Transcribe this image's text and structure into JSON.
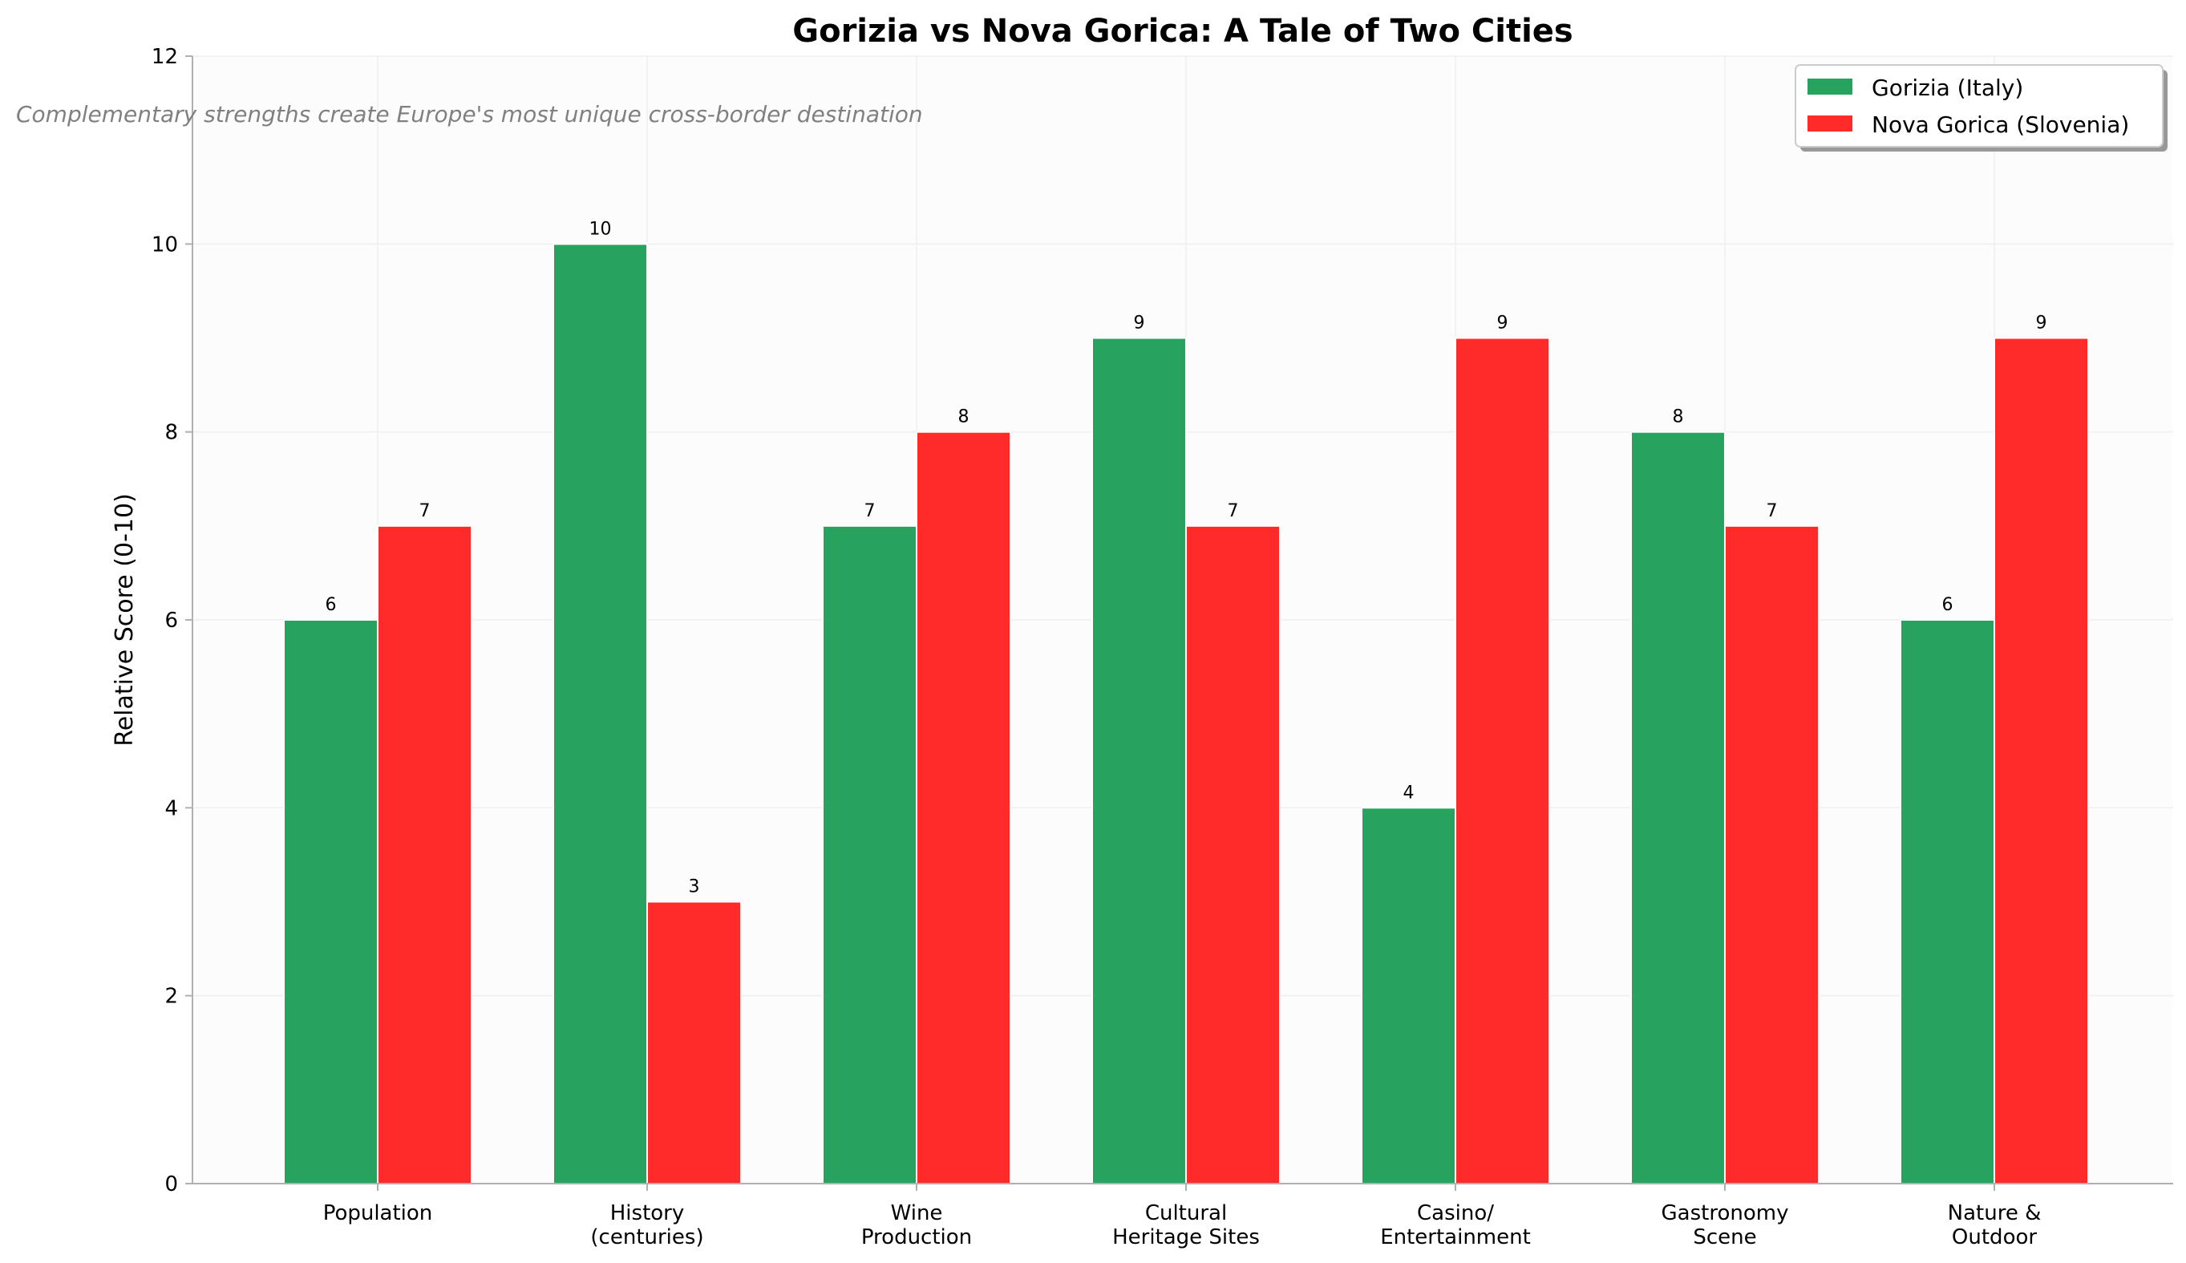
{
  "chart_data": {
    "type": "bar",
    "title": "Gorizia vs Nova Gorica: A Tale of Two Cities",
    "subtitle": "Complementary strengths create Europe's most unique cross-border destination",
    "xlabel": "",
    "ylabel": "Relative Score (0-10)",
    "ylim": [
      0,
      12
    ],
    "yticks": [
      0,
      2,
      4,
      6,
      8,
      10,
      12
    ],
    "categories": [
      [
        "Population"
      ],
      [
        "History",
        "(centuries)"
      ],
      [
        "Wine",
        "Production"
      ],
      [
        "Cultural",
        "Heritage Sites"
      ],
      [
        "Casino/",
        "Entertainment"
      ],
      [
        "Gastronomy",
        "Scene"
      ],
      [
        "Nature &",
        "Outdoor"
      ]
    ],
    "series": [
      {
        "name": "Gorizia (Italy)",
        "color": "#27a25f",
        "values": [
          6,
          10,
          7,
          9,
          4,
          8,
          6
        ]
      },
      {
        "name": "Nova Gorica (Slovenia)",
        "color": "#ff2a2a",
        "values": [
          7,
          3,
          8,
          7,
          9,
          7,
          9
        ]
      }
    ],
    "grid": true,
    "legend_position": "top-right"
  }
}
